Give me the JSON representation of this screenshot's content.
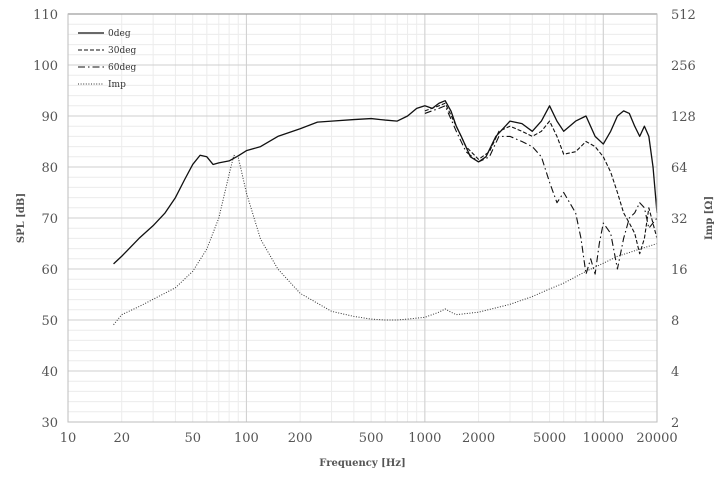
{
  "chart_data": {
    "type": "line",
    "xlabel": "Frequency [Hz]",
    "ylabel": "SPL [dB]",
    "y2label": "Imp [Ω]",
    "x_scale": "log",
    "xlim": [
      10,
      20000
    ],
    "ylim": [
      30,
      110
    ],
    "y2lim": [
      2,
      512
    ],
    "y2_scale": "log",
    "grid": true,
    "legend_position": "top-left",
    "x_ticks": [
      "10",
      "20",
      "50",
      "100",
      "200",
      "500",
      "1000",
      "2000",
      "5000",
      "10000",
      "20000"
    ],
    "y_ticks": [
      "30",
      "40",
      "50",
      "60",
      "70",
      "80",
      "90",
      "100",
      "110"
    ],
    "y2_ticks": [
      "2",
      "4",
      "8",
      "16",
      "32",
      "64",
      "128",
      "256",
      "512"
    ],
    "series": [
      {
        "name": "0deg",
        "axis": "left",
        "style": "solid",
        "points": [
          [
            18,
            61
          ],
          [
            20,
            62.5
          ],
          [
            25,
            66
          ],
          [
            30,
            68.5
          ],
          [
            35,
            71
          ],
          [
            40,
            74
          ],
          [
            45,
            77.5
          ],
          [
            50,
            80.5
          ],
          [
            55,
            82.3
          ],
          [
            60,
            82
          ],
          [
            65,
            80.5
          ],
          [
            70,
            80.8
          ],
          [
            80,
            81.2
          ],
          [
            90,
            82.2
          ],
          [
            100,
            83.2
          ],
          [
            120,
            84
          ],
          [
            150,
            86
          ],
          [
            200,
            87.5
          ],
          [
            250,
            88.8
          ],
          [
            300,
            89
          ],
          [
            400,
            89.3
          ],
          [
            500,
            89.5
          ],
          [
            600,
            89.2
          ],
          [
            700,
            89
          ],
          [
            800,
            90
          ],
          [
            900,
            91.5
          ],
          [
            1000,
            92
          ],
          [
            1100,
            91.5
          ],
          [
            1200,
            92.5
          ],
          [
            1300,
            93
          ],
          [
            1400,
            91
          ],
          [
            1500,
            88
          ],
          [
            1600,
            86
          ],
          [
            1800,
            82
          ],
          [
            2000,
            81
          ],
          [
            2200,
            82
          ],
          [
            2500,
            86
          ],
          [
            3000,
            89
          ],
          [
            3500,
            88.5
          ],
          [
            4000,
            87
          ],
          [
            4500,
            89
          ],
          [
            5000,
            92
          ],
          [
            5500,
            89
          ],
          [
            6000,
            87
          ],
          [
            7000,
            89
          ],
          [
            8000,
            90
          ],
          [
            9000,
            86
          ],
          [
            10000,
            84.5
          ],
          [
            11000,
            87
          ],
          [
            12000,
            90
          ],
          [
            13000,
            91
          ],
          [
            14000,
            90.5
          ],
          [
            15000,
            88
          ],
          [
            16000,
            86
          ],
          [
            17000,
            88
          ],
          [
            18000,
            86
          ],
          [
            19000,
            80
          ],
          [
            20000,
            71
          ]
        ]
      },
      {
        "name": "30deg",
        "axis": "left",
        "style": "dashed",
        "points": [
          [
            1000,
            91
          ],
          [
            1200,
            92
          ],
          [
            1300,
            92.5
          ],
          [
            1500,
            88
          ],
          [
            1700,
            84
          ],
          [
            2000,
            81.5
          ],
          [
            2300,
            83
          ],
          [
            2600,
            87
          ],
          [
            3000,
            88
          ],
          [
            3500,
            87
          ],
          [
            4000,
            86
          ],
          [
            4500,
            87
          ],
          [
            5000,
            89
          ],
          [
            5500,
            86
          ],
          [
            6000,
            82.5
          ],
          [
            7000,
            83
          ],
          [
            8000,
            85
          ],
          [
            9000,
            84
          ],
          [
            10000,
            82
          ],
          [
            11000,
            79
          ],
          [
            12000,
            75
          ],
          [
            13000,
            71
          ],
          [
            14000,
            69
          ],
          [
            15000,
            67
          ],
          [
            16000,
            63
          ],
          [
            17000,
            66
          ],
          [
            18000,
            72
          ],
          [
            20000,
            66
          ]
        ]
      },
      {
        "name": "60deg",
        "axis": "left",
        "style": "dashdot",
        "points": [
          [
            1000,
            90.5
          ],
          [
            1200,
            91.5
          ],
          [
            1300,
            92
          ],
          [
            1500,
            87
          ],
          [
            1700,
            83
          ],
          [
            2000,
            81
          ],
          [
            2300,
            82
          ],
          [
            2600,
            86
          ],
          [
            3000,
            86
          ],
          [
            3500,
            85
          ],
          [
            4000,
            84
          ],
          [
            4500,
            82
          ],
          [
            5000,
            77
          ],
          [
            5500,
            73
          ],
          [
            6000,
            75
          ],
          [
            7000,
            71
          ],
          [
            7500,
            66
          ],
          [
            8000,
            59
          ],
          [
            8500,
            62
          ],
          [
            9000,
            59
          ],
          [
            9500,
            65
          ],
          [
            10000,
            69
          ],
          [
            11000,
            67
          ],
          [
            12000,
            60
          ],
          [
            13000,
            66
          ],
          [
            14000,
            70
          ],
          [
            15000,
            71
          ],
          [
            16000,
            73
          ],
          [
            17000,
            72
          ],
          [
            18000,
            68
          ],
          [
            20000,
            70
          ]
        ]
      },
      {
        "name": "Imp",
        "axis": "right",
        "style": "dotted",
        "points": [
          [
            18,
            7.5
          ],
          [
            20,
            8.6
          ],
          [
            25,
            9.6
          ],
          [
            30,
            10.6
          ],
          [
            40,
            12.4
          ],
          [
            50,
            15.5
          ],
          [
            60,
            21
          ],
          [
            70,
            32
          ],
          [
            80,
            58
          ],
          [
            85,
            75
          ],
          [
            90,
            73
          ],
          [
            100,
            45
          ],
          [
            120,
            24
          ],
          [
            150,
            16
          ],
          [
            200,
            11.5
          ],
          [
            300,
            9
          ],
          [
            400,
            8.4
          ],
          [
            500,
            8.1
          ],
          [
            600,
            8
          ],
          [
            700,
            8
          ],
          [
            800,
            8.1
          ],
          [
            1000,
            8.3
          ],
          [
            1200,
            8.9
          ],
          [
            1300,
            9.3
          ],
          [
            1400,
            8.9
          ],
          [
            1500,
            8.6
          ],
          [
            2000,
            8.9
          ],
          [
            3000,
            9.9
          ],
          [
            4000,
            11
          ],
          [
            5000,
            12.2
          ],
          [
            6000,
            13.2
          ],
          [
            8000,
            15.5
          ],
          [
            10000,
            17.3
          ],
          [
            12000,
            19
          ],
          [
            15000,
            20.5
          ],
          [
            20000,
            22.6
          ]
        ]
      }
    ]
  }
}
